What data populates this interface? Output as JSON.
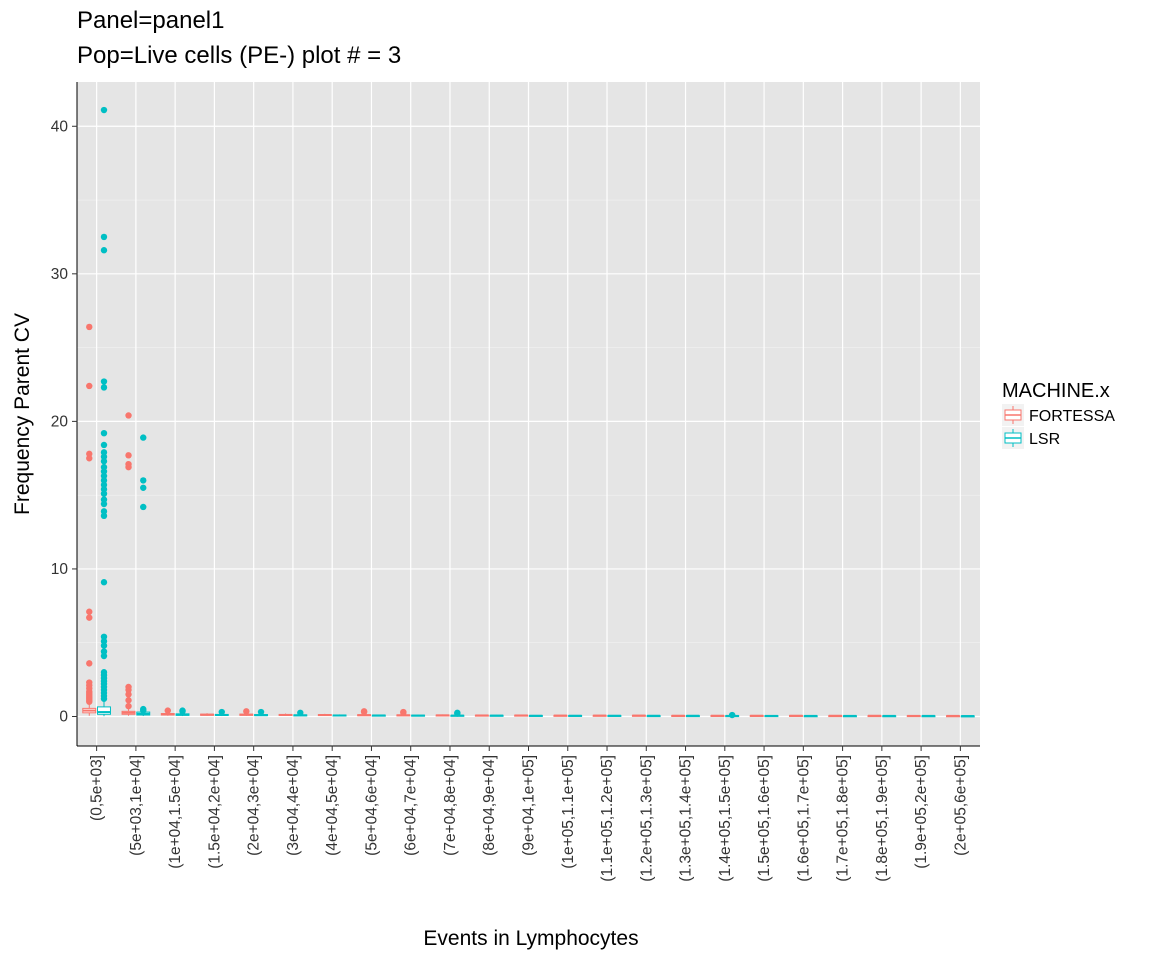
{
  "chart_data": {
    "type": "box",
    "title": "Panel=panel1",
    "subtitle": "Pop=Live cells (PE-) plot # = 3",
    "xlabel": "Events in Lymphocytes",
    "ylabel": "Frequency Parent CV",
    "ylim": [
      -2,
      43
    ],
    "yticks": [
      0,
      10,
      20,
      30,
      40
    ],
    "grid": true,
    "legend": {
      "title": "MACHINE.x",
      "position": "right"
    },
    "categories": [
      "(0,5e+03]",
      "(5e+03,1e+04]",
      "(1e+04,1.5e+04]",
      "(1.5e+04,2e+04]",
      "(2e+04,3e+04]",
      "(3e+04,4e+04]",
      "(4e+04,5e+04]",
      "(5e+04,6e+04]",
      "(6e+04,7e+04]",
      "(7e+04,8e+04]",
      "(8e+04,9e+04]",
      "(9e+04,1e+05]",
      "(1e+05,1.1e+05]",
      "(1.1e+05,1.2e+05]",
      "(1.2e+05,1.3e+05]",
      "(1.3e+05,1.4e+05]",
      "(1.4e+05,1.5e+05]",
      "(1.5e+05,1.6e+05]",
      "(1.6e+05,1.7e+05]",
      "(1.7e+05,1.8e+05]",
      "(1.8e+05,1.9e+05]",
      "(1.9e+05,2e+05]",
      "(2e+05,6e+05]"
    ],
    "series": [
      {
        "name": "FORTESSA",
        "color": "#F8766D",
        "boxes": [
          {
            "q1": 0.25,
            "median": 0.4,
            "q3": 0.55,
            "whisker_low": 0.05,
            "whisker_high": 0.9,
            "outliers": [
              26.4,
              22.4,
              17.8,
              17.5,
              7.1,
              6.7,
              3.6,
              2.3,
              2.1,
              1.9,
              1.7,
              1.6,
              1.5,
              1.4,
              1.3,
              1.2,
              1.1,
              1.0
            ]
          },
          {
            "q1": 0.15,
            "median": 0.25,
            "q3": 0.35,
            "whisker_low": 0.05,
            "whisker_high": 0.55,
            "outliers": [
              20.4,
              17.7,
              17.1,
              16.9,
              2.0,
              1.8,
              1.5,
              1.1,
              0.7
            ]
          },
          {
            "q1": 0.1,
            "median": 0.15,
            "q3": 0.2,
            "whisker_low": 0.05,
            "whisker_high": 0.3,
            "outliers": [
              0.4
            ]
          },
          {
            "q1": 0.08,
            "median": 0.12,
            "q3": 0.16,
            "whisker_low": 0.05,
            "whisker_high": 0.22,
            "outliers": []
          },
          {
            "q1": 0.08,
            "median": 0.12,
            "q3": 0.16,
            "whisker_low": 0.04,
            "whisker_high": 0.22,
            "outliers": [
              0.35
            ]
          },
          {
            "q1": 0.07,
            "median": 0.1,
            "q3": 0.14,
            "whisker_low": 0.04,
            "whisker_high": 0.2,
            "outliers": []
          },
          {
            "q1": 0.07,
            "median": 0.1,
            "q3": 0.13,
            "whisker_low": 0.04,
            "whisker_high": 0.18,
            "outliers": []
          },
          {
            "q1": 0.06,
            "median": 0.09,
            "q3": 0.12,
            "whisker_low": 0.03,
            "whisker_high": 0.17,
            "outliers": [
              0.35,
              0.3
            ]
          },
          {
            "q1": 0.06,
            "median": 0.08,
            "q3": 0.11,
            "whisker_low": 0.03,
            "whisker_high": 0.16,
            "outliers": [
              0.3,
              0.25
            ]
          },
          {
            "q1": 0.05,
            "median": 0.08,
            "q3": 0.1,
            "whisker_low": 0.03,
            "whisker_high": 0.14,
            "outliers": []
          },
          {
            "q1": 0.05,
            "median": 0.07,
            "q3": 0.09,
            "whisker_low": 0.03,
            "whisker_high": 0.12,
            "outliers": []
          },
          {
            "q1": 0.05,
            "median": 0.07,
            "q3": 0.09,
            "whisker_low": 0.03,
            "whisker_high": 0.12,
            "outliers": []
          },
          {
            "q1": 0.04,
            "median": 0.06,
            "q3": 0.08,
            "whisker_low": 0.02,
            "whisker_high": 0.11,
            "outliers": []
          },
          {
            "q1": 0.04,
            "median": 0.06,
            "q3": 0.08,
            "whisker_low": 0.02,
            "whisker_high": 0.11,
            "outliers": []
          },
          {
            "q1": 0.04,
            "median": 0.06,
            "q3": 0.08,
            "whisker_low": 0.02,
            "whisker_high": 0.1,
            "outliers": []
          },
          {
            "q1": 0.04,
            "median": 0.05,
            "q3": 0.07,
            "whisker_low": 0.02,
            "whisker_high": 0.1,
            "outliers": []
          },
          {
            "q1": 0.04,
            "median": 0.05,
            "q3": 0.07,
            "whisker_low": 0.02,
            "whisker_high": 0.1,
            "outliers": []
          },
          {
            "q1": 0.04,
            "median": 0.05,
            "q3": 0.07,
            "whisker_low": 0.02,
            "whisker_high": 0.1,
            "outliers": []
          },
          {
            "q1": 0.03,
            "median": 0.05,
            "q3": 0.07,
            "whisker_low": 0.02,
            "whisker_high": 0.09,
            "outliers": []
          },
          {
            "q1": 0.03,
            "median": 0.05,
            "q3": 0.06,
            "whisker_low": 0.02,
            "whisker_high": 0.09,
            "outliers": []
          },
          {
            "q1": 0.03,
            "median": 0.05,
            "q3": 0.06,
            "whisker_low": 0.02,
            "whisker_high": 0.09,
            "outliers": []
          },
          {
            "q1": 0.03,
            "median": 0.04,
            "q3": 0.06,
            "whisker_low": 0.02,
            "whisker_high": 0.08,
            "outliers": []
          },
          {
            "q1": 0.03,
            "median": 0.04,
            "q3": 0.05,
            "whisker_low": 0.01,
            "whisker_high": 0.07,
            "outliers": []
          }
        ]
      },
      {
        "name": "LSR",
        "color": "#00BFC4",
        "boxes": [
          {
            "q1": 0.15,
            "median": 0.3,
            "q3": 0.65,
            "whisker_low": 0.02,
            "whisker_high": 1.0,
            "outliers": [
              41.1,
              32.5,
              31.6,
              22.7,
              22.3,
              19.2,
              18.4,
              17.9,
              17.6,
              17.3,
              16.9,
              16.6,
              16.3,
              16.0,
              15.7,
              15.4,
              15.1,
              14.7,
              14.4,
              13.9,
              13.6,
              9.1,
              5.4,
              5.1,
              4.8,
              4.4,
              4.1,
              3.0,
              2.8,
              2.6,
              2.4,
              2.2,
              2.0,
              1.8,
              1.6,
              1.4,
              1.2
            ]
          },
          {
            "q1": 0.1,
            "median": 0.18,
            "q3": 0.3,
            "whisker_low": 0.03,
            "whisker_high": 0.5,
            "outliers": [
              18.9,
              16.0,
              15.5,
              14.2,
              0.5,
              0.4
            ]
          },
          {
            "q1": 0.08,
            "median": 0.12,
            "q3": 0.18,
            "whisker_low": 0.03,
            "whisker_high": 0.28,
            "outliers": [
              0.4,
              0.35
            ]
          },
          {
            "q1": 0.07,
            "median": 0.1,
            "q3": 0.14,
            "whisker_low": 0.03,
            "whisker_high": 0.2,
            "outliers": [
              0.3
            ]
          },
          {
            "q1": 0.06,
            "median": 0.09,
            "q3": 0.13,
            "whisker_low": 0.03,
            "whisker_high": 0.18,
            "outliers": [
              0.3
            ]
          },
          {
            "q1": 0.05,
            "median": 0.08,
            "q3": 0.11,
            "whisker_low": 0.02,
            "whisker_high": 0.16,
            "outliers": [
              0.25
            ]
          },
          {
            "q1": 0.05,
            "median": 0.07,
            "q3": 0.1,
            "whisker_low": 0.02,
            "whisker_high": 0.14,
            "outliers": []
          },
          {
            "q1": 0.05,
            "median": 0.07,
            "q3": 0.09,
            "whisker_low": 0.02,
            "whisker_high": 0.13,
            "outliers": []
          },
          {
            "q1": 0.04,
            "median": 0.06,
            "q3": 0.09,
            "whisker_low": 0.02,
            "whisker_high": 0.12,
            "outliers": []
          },
          {
            "q1": 0.04,
            "median": 0.06,
            "q3": 0.08,
            "whisker_low": 0.02,
            "whisker_high": 0.11,
            "outliers": [
              0.25,
              0.2
            ]
          },
          {
            "q1": 0.04,
            "median": 0.06,
            "q3": 0.08,
            "whisker_low": 0.02,
            "whisker_high": 0.11,
            "outliers": []
          },
          {
            "q1": 0.04,
            "median": 0.05,
            "q3": 0.07,
            "whisker_low": 0.02,
            "whisker_high": 0.1,
            "outliers": []
          },
          {
            "q1": 0.04,
            "median": 0.05,
            "q3": 0.07,
            "whisker_low": 0.02,
            "whisker_high": 0.1,
            "outliers": []
          },
          {
            "q1": 0.03,
            "median": 0.05,
            "q3": 0.07,
            "whisker_low": 0.02,
            "whisker_high": 0.09,
            "outliers": []
          },
          {
            "q1": 0.03,
            "median": 0.05,
            "q3": 0.06,
            "whisker_low": 0.02,
            "whisker_high": 0.09,
            "outliers": []
          },
          {
            "q1": 0.03,
            "median": 0.05,
            "q3": 0.06,
            "whisker_low": 0.01,
            "whisker_high": 0.09,
            "outliers": []
          },
          {
            "q1": 0.03,
            "median": 0.04,
            "q3": 0.06,
            "whisker_low": 0.01,
            "whisker_high": 0.08,
            "outliers": [
              0.1
            ]
          },
          {
            "q1": 0.03,
            "median": 0.04,
            "q3": 0.06,
            "whisker_low": 0.01,
            "whisker_high": 0.08,
            "outliers": []
          },
          {
            "q1": 0.03,
            "median": 0.04,
            "q3": 0.05,
            "whisker_low": 0.01,
            "whisker_high": 0.08,
            "outliers": []
          },
          {
            "q1": 0.03,
            "median": 0.04,
            "q3": 0.05,
            "whisker_low": 0.01,
            "whisker_high": 0.07,
            "outliers": []
          },
          {
            "q1": 0.03,
            "median": 0.04,
            "q3": 0.05,
            "whisker_low": 0.01,
            "whisker_high": 0.07,
            "outliers": []
          },
          {
            "q1": 0.02,
            "median": 0.04,
            "q3": 0.05,
            "whisker_low": 0.01,
            "whisker_high": 0.07,
            "outliers": []
          },
          {
            "q1": 0.02,
            "median": 0.03,
            "q3": 0.04,
            "whisker_low": 0.01,
            "whisker_high": 0.06,
            "outliers": []
          }
        ]
      }
    ]
  }
}
